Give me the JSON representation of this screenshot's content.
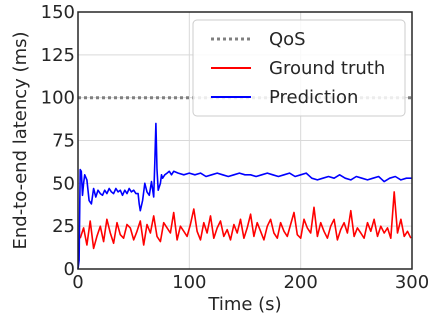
{
  "chart_data": {
    "type": "line",
    "xlabel": "Time (s)",
    "ylabel": "End-to-end latency (ms)",
    "xlim": [
      0,
      300
    ],
    "ylim": [
      0,
      150
    ],
    "xticks": [
      0,
      100,
      200,
      300
    ],
    "yticks": [
      0,
      25,
      50,
      75,
      100,
      125,
      150
    ],
    "grid": true,
    "legend_position": "top-right",
    "series": [
      {
        "name": "QoS",
        "color": "#808080",
        "style": "dotted",
        "x": [
          0,
          300
        ],
        "y": [
          100,
          100
        ]
      },
      {
        "name": "Ground truth",
        "color": "#ff0000",
        "style": "solid",
        "x": [
          2,
          5,
          8,
          11,
          14,
          17,
          20,
          23,
          26,
          29,
          32,
          35,
          38,
          41,
          44,
          47,
          50,
          53,
          56,
          59,
          62,
          65,
          68,
          71,
          74,
          77,
          80,
          83,
          86,
          89,
          92,
          95,
          98,
          101,
          104,
          107,
          110,
          113,
          116,
          119,
          122,
          125,
          128,
          131,
          134,
          137,
          140,
          143,
          146,
          149,
          152,
          155,
          158,
          161,
          164,
          167,
          170,
          173,
          176,
          179,
          182,
          185,
          188,
          191,
          194,
          197,
          200,
          203,
          206,
          209,
          212,
          215,
          218,
          221,
          224,
          227,
          230,
          233,
          236,
          239,
          242,
          245,
          248,
          251,
          254,
          257,
          260,
          263,
          266,
          269,
          272,
          275,
          278,
          281,
          284,
          287,
          290,
          293,
          296,
          299
        ],
        "y": [
          18,
          24,
          14,
          28,
          12,
          19,
          25,
          16,
          29,
          21,
          15,
          27,
          20,
          18,
          26,
          24,
          17,
          22,
          28,
          14,
          26,
          21,
          31,
          19,
          16,
          27,
          24,
          21,
          33,
          17,
          25,
          22,
          19,
          26,
          35,
          22,
          17,
          27,
          21,
          31,
          18,
          24,
          28,
          19,
          23,
          17,
          26,
          21,
          29,
          18,
          24,
          32,
          19,
          27,
          22,
          17,
          25,
          29,
          21,
          18,
          27,
          22,
          19,
          26,
          33,
          20,
          18,
          29,
          24,
          21,
          36,
          19,
          27,
          22,
          18,
          25,
          29,
          17,
          23,
          27,
          21,
          34,
          19,
          24,
          21,
          18,
          27,
          22,
          29,
          19,
          25,
          21,
          24,
          18,
          45,
          21,
          29,
          19,
          22,
          18
        ]
      },
      {
        "name": "Prediction",
        "color": "#0000ff",
        "style": "solid",
        "x": [
          0,
          1,
          2,
          3,
          4,
          5,
          6,
          8,
          10,
          12,
          14,
          16,
          18,
          20,
          22,
          24,
          26,
          28,
          30,
          32,
          34,
          36,
          38,
          40,
          42,
          44,
          46,
          48,
          50,
          52,
          54,
          55,
          56,
          58,
          60,
          62,
          64,
          66,
          68,
          69,
          70,
          71,
          72,
          73,
          74,
          75,
          76,
          78,
          80,
          82,
          84,
          86,
          90,
          95,
          100,
          105,
          110,
          115,
          120,
          125,
          130,
          135,
          140,
          145,
          150,
          155,
          160,
          165,
          170,
          175,
          180,
          185,
          190,
          195,
          200,
          205,
          210,
          215,
          220,
          225,
          230,
          235,
          240,
          245,
          250,
          255,
          260,
          265,
          270,
          275,
          280,
          285,
          290,
          295,
          300
        ],
        "y": [
          0,
          5,
          58,
          57,
          43,
          50,
          55,
          52,
          40,
          38,
          47,
          42,
          46,
          44,
          43,
          46,
          44,
          47,
          45,
          44,
          47,
          45,
          46,
          43,
          46,
          44,
          47,
          45,
          46,
          44,
          44,
          38,
          34,
          40,
          50,
          45,
          43,
          51,
          42,
          62,
          85,
          58,
          46,
          48,
          50,
          55,
          53,
          55,
          56,
          57,
          55,
          57,
          56,
          55,
          56,
          55,
          56,
          54,
          55,
          56,
          55,
          54,
          55,
          56,
          55,
          55,
          54,
          55,
          56,
          55,
          54,
          55,
          56,
          54,
          55,
          56,
          53,
          52,
          53,
          54,
          53,
          55,
          53,
          52,
          54,
          53,
          52,
          53,
          54,
          51,
          53,
          54,
          52,
          53,
          53
        ]
      }
    ]
  }
}
